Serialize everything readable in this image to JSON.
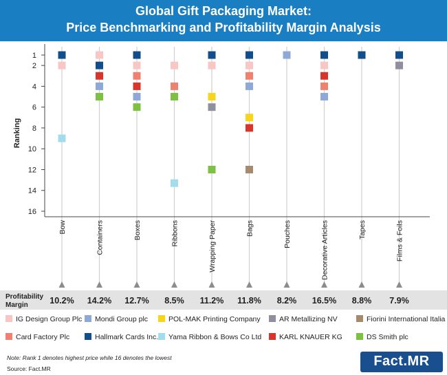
{
  "title": {
    "line1": "Global Gift Packaging Market:",
    "line2": "Price Benchmarking and Profitability Margin Analysis"
  },
  "colors": {
    "header": "#1a7ec2",
    "margin_row": "#e3e3e3",
    "gridline": "#cfcfcf",
    "axis": "#444444",
    "triangle": "#8c8c8c"
  },
  "chart_data": {
    "type": "scatter",
    "title": "Global Gift Packaging Market: Price Benchmarking and Profitability Margin Analysis",
    "ylabel": "Ranking",
    "xlabel": "",
    "ylim": [
      1,
      16
    ],
    "y_inverted": true,
    "yticks": [
      1,
      2,
      4,
      6,
      8,
      10,
      12,
      14,
      16
    ],
    "categories": [
      "Bow",
      "Containers",
      "Boxes",
      "Ribbons",
      "Wrapping Paper",
      "Bags",
      "Pouches",
      "Decorative Articles",
      "Tapes",
      "Films & Foils"
    ],
    "margin_label_line1": "Profitability",
    "margin_label_line2": "Margin",
    "profitability_margin": [
      "10.2%",
      "14.2%",
      "12.7%",
      "8.5%",
      "11.2%",
      "11.8%",
      "8.2%",
      "16.5%",
      "8.8%",
      "7.9%"
    ],
    "series": [
      {
        "name": "IG Design Group Plc",
        "color": "#f9c6c6",
        "values": [
          2,
          1,
          2,
          2,
          2,
          2,
          null,
          2,
          null,
          null
        ]
      },
      {
        "name": "Mondi Group plc",
        "color": "#8ea9d8",
        "values": [
          null,
          4,
          5,
          null,
          null,
          4,
          1,
          5,
          null,
          null
        ]
      },
      {
        "name": "POL-MAK Printing Company",
        "color": "#f7d51d",
        "values": [
          null,
          null,
          null,
          null,
          5,
          7,
          null,
          null,
          null,
          null
        ]
      },
      {
        "name": "AR Metallizing NV",
        "color": "#8f8f9e",
        "values": [
          null,
          null,
          null,
          null,
          6,
          null,
          null,
          null,
          null,
          2
        ]
      },
      {
        "name": "Fiorini International Italia S.p.a",
        "color": "#a68a6d",
        "values": [
          null,
          null,
          null,
          null,
          null,
          12,
          null,
          null,
          null,
          null
        ]
      },
      {
        "name": "Card Factory Plc",
        "color": "#f08070",
        "values": [
          null,
          null,
          3,
          4,
          null,
          3,
          null,
          4,
          null,
          null
        ]
      },
      {
        "name": "Hallmark Cards Inc.",
        "color": "#124e8c",
        "values": [
          1,
          2,
          1,
          null,
          1,
          1,
          null,
          1,
          1,
          1
        ]
      },
      {
        "name": "Yama Ribbon & Bows Co Ltd",
        "color": "#a3dcea",
        "values": [
          9,
          null,
          null,
          13.3,
          null,
          null,
          null,
          null,
          null,
          null
        ]
      },
      {
        "name": "KARL KNAUER KG",
        "color": "#d9352a",
        "values": [
          null,
          3,
          4,
          null,
          null,
          8,
          null,
          3,
          null,
          null
        ]
      },
      {
        "name": "DS Smith plc",
        "color": "#7cc142",
        "values": [
          null,
          5,
          6,
          5,
          12,
          null,
          null,
          null,
          null,
          null
        ]
      }
    ],
    "note": "Note: Rank 1 denotes highest price while 16 denotes the lowest",
    "source": "Source: Fact.MR"
  },
  "logo": {
    "text": "Fact.MR"
  }
}
